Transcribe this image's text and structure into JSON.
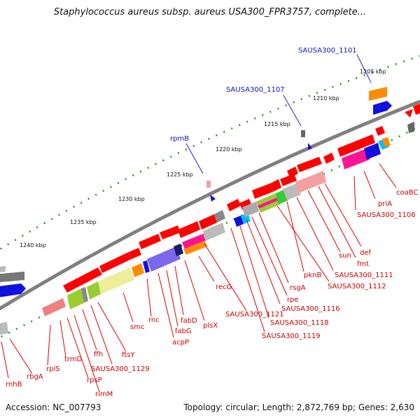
{
  "title": "Staphylococcus aureus subsp. aureus USA300_FPR3757, complete...",
  "footer": {
    "accession": "Accession: NC_007793",
    "summary": "Topology: circular; Length: 2,872,769 bp; Genes: 2,630"
  },
  "scale_labels": [
    "1205 kbp",
    "1210 kbp",
    "1215 kbp",
    "1220 kbp",
    "1225 kbp",
    "1230 kbp",
    "1235 kbp",
    "1240 kbp"
  ],
  "highlighted_genes": [
    "SAUSA300_1101",
    "SAUSA300_1107",
    "rpmB"
  ],
  "gene_labels": [
    "coaBC",
    "priA",
    "SAUSA300_1106",
    "def",
    "fmt",
    "sun",
    "SAUSA300_1111",
    "pknB",
    "SAUSA300_1112",
    "rsgA",
    "rpe",
    "SAUSA300_1116",
    "SAUSA300_1118",
    "SAUSA300_1119",
    "SAUSA300_1121",
    "recG",
    "plsX",
    "fabD",
    "fabG",
    "acpP",
    "rnc",
    "smc",
    "ftsY",
    "SAUSA300_1129",
    "ffh",
    "rimM",
    "rpsP",
    "trmD",
    "rplS",
    "rbgA",
    "rnhB"
  ]
}
